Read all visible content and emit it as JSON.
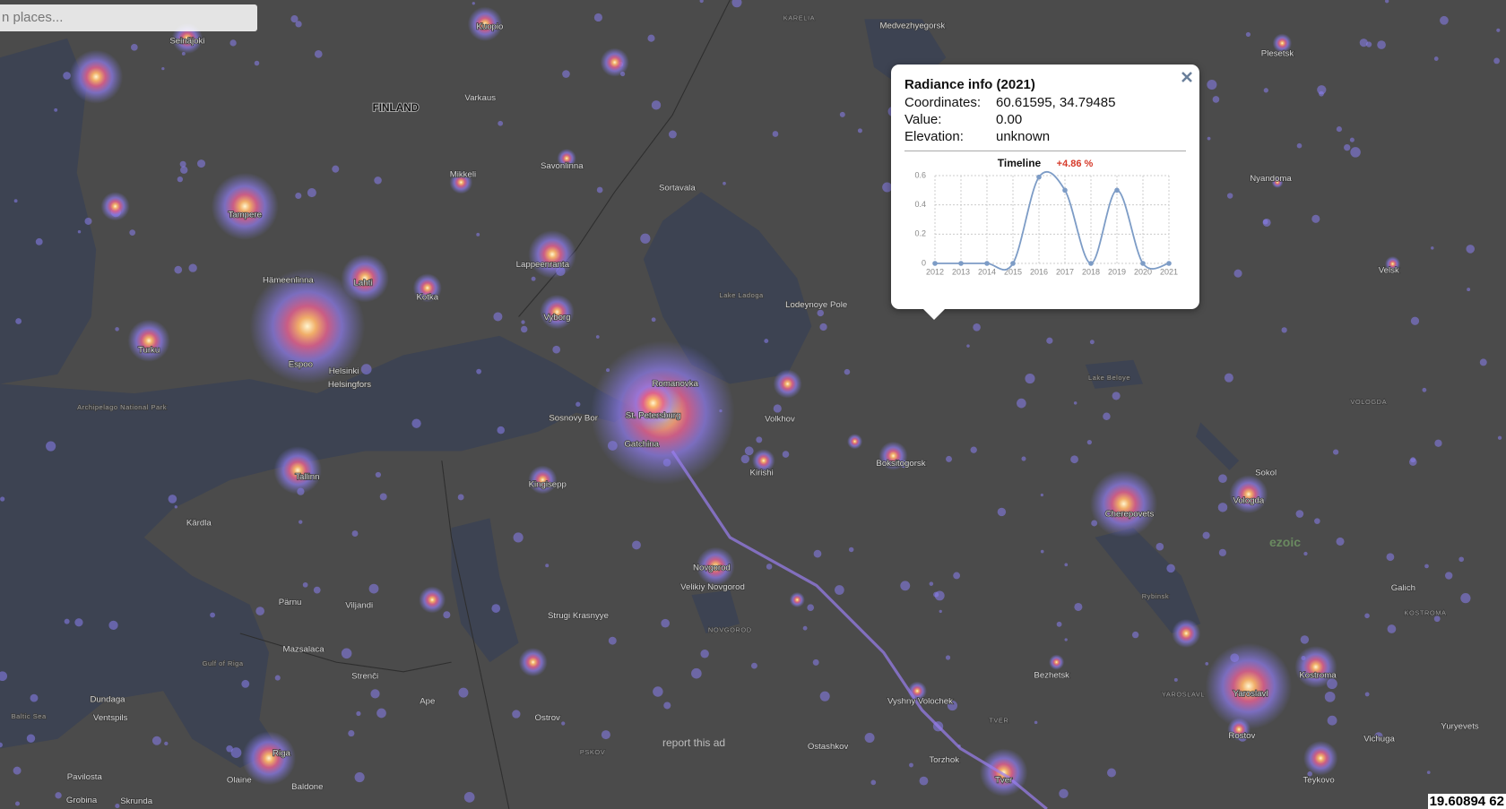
{
  "search": {
    "placeholder": "n places..."
  },
  "map": {
    "labels": [
      "FINLAND",
      "Seinäjoki",
      "Kuopio",
      "Varkaus",
      "Mikkeli",
      "Savonlinna",
      "Tampere",
      "Hämeenlinna",
      "Lahti",
      "Kotka",
      "Lappeenranta",
      "Turku",
      "Espoo",
      "Helsinki",
      "Helsingfors",
      "Vyborg",
      "Sortavala",
      "Lake Ladoga",
      "Lodeynoye Pole",
      "Medvezhyegorsk",
      "KARELIA",
      "Romanovka",
      "St. Petersburg",
      "Sosnovy Bor",
      "Gatchina",
      "Volkhov",
      "Kirishi",
      "Boksitogorsk",
      "Tallinn",
      "Kingisepp",
      "Kärdla",
      "Archipelago National Park",
      "Pärnu",
      "Viljandi",
      "Strugi Krasnyye",
      "Novgorod",
      "Velikiy Novgorod",
      "NOVGOROD",
      "Gulf of Riga",
      "Mazsalaca",
      "Strenči",
      "Ape",
      "Ostrov",
      "PSKOV",
      "Dundaga",
      "Ventspils",
      "Baltic Sea",
      "Pavilosta",
      "Riga",
      "Olaine",
      "Baldone",
      "Grobina",
      "Skrunda",
      "Lake Beloye",
      "Nyandoma",
      "Plesetsk",
      "Velsk",
      "VOLOGDA",
      "Sokol",
      "Vologda",
      "Cherepovets",
      "Rybinsk",
      "Galich",
      "KOSTROMA",
      "Kostroma",
      "Yaroslavl",
      "YAROSLAVL",
      "Rostov",
      "Vichuga",
      "Yuryevets",
      "Teykovo",
      "Bezhetsk",
      "TVER",
      "Tver",
      "Torzhok",
      "Vyshny Volochek",
      "Ostashkov"
    ],
    "report_ad": "report this ad",
    "ad_badge": "ezoic",
    "coordinate_readout": "19.60894 62"
  },
  "popup": {
    "title": "Radiance info (2021)",
    "fields": [
      {
        "label": "Coordinates:",
        "value": "60.61595, 34.79485"
      },
      {
        "label": "Value:",
        "value": "0.00"
      },
      {
        "label": "Elevation:",
        "value": "unknown"
      }
    ]
  },
  "chart_data": {
    "type": "line",
    "title": "Timeline",
    "annotation": "+4.86 %",
    "x": [
      2012,
      2013,
      2014,
      2015,
      2016,
      2017,
      2018,
      2019,
      2020,
      2021
    ],
    "values": [
      0,
      0,
      0,
      0,
      0.59,
      0.5,
      0,
      0.5,
      0,
      0
    ],
    "color": "#7d9cc6",
    "xlim": [
      2012,
      2021
    ],
    "ylim": [
      0,
      0.6
    ],
    "yticks": [
      0,
      0.2,
      0.4,
      0.6
    ],
    "grid": true
  }
}
